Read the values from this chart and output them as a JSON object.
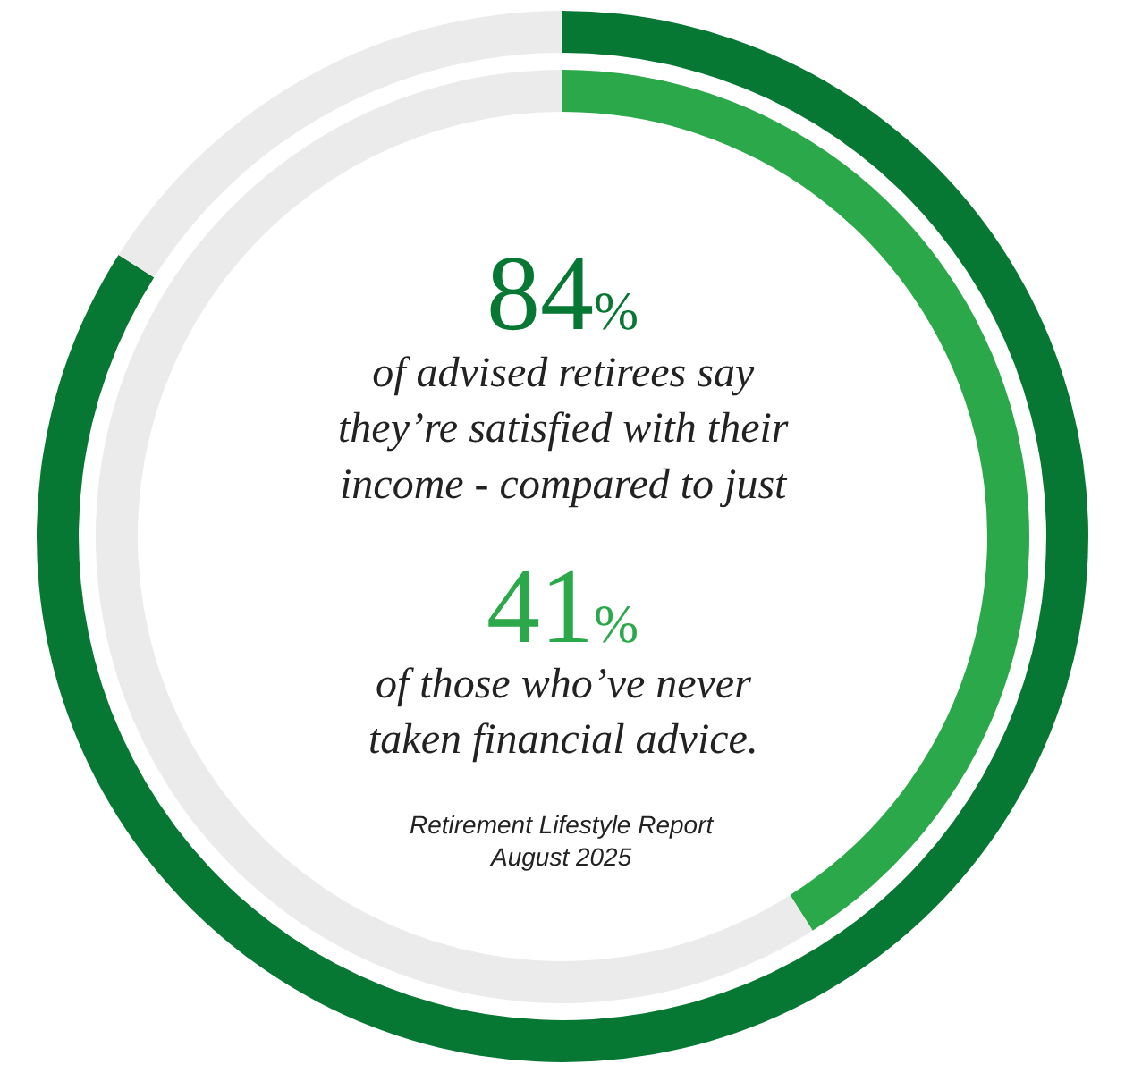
{
  "chart_data": {
    "type": "donut",
    "categories": [
      null,
      null
    ],
    "series": [
      {
        "values": [
          84,
          16
        ],
        "colors": [
          "#077734",
          "#ebebeb"
        ]
      },
      {
        "values": [
          41,
          59
        ],
        "colors": [
          "#2ba84a",
          "#ebebeb"
        ]
      }
    ],
    "annotations": [
      "84%",
      "of advised retirees say\nthey’re satisfied with their\nincome - compared to just",
      "41%",
      "of those who’ve never\ntaken financial advice.",
      "Retirement Lifestyle Report\nAugust 2025"
    ],
    "legend": false
  }
}
